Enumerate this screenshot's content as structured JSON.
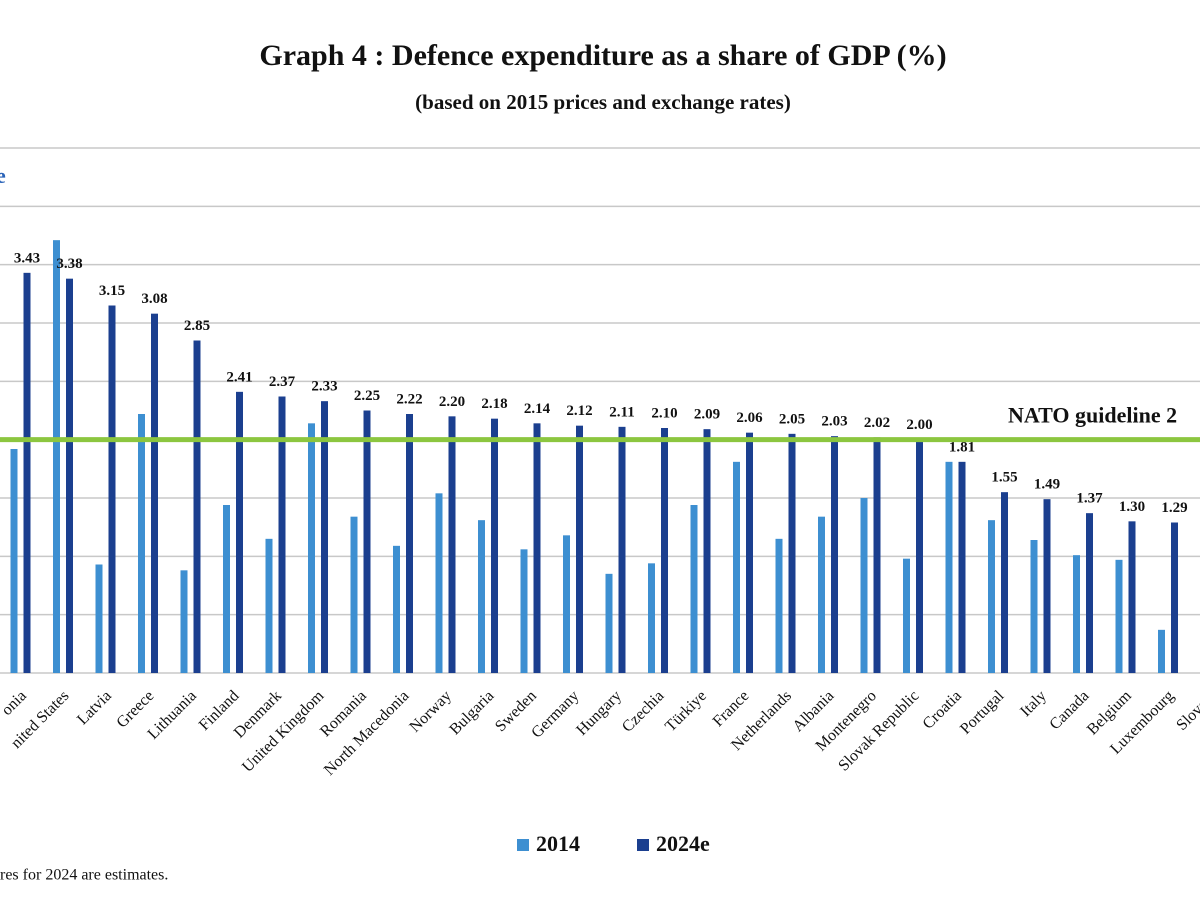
{
  "chart_data": {
    "type": "bar",
    "title": "Graph 4 : Defence expenditure as a share of GDP (%)",
    "subtitle": "(based on 2015 prices and exchange rates)",
    "corner_text": "e",
    "footnote": "res for 2024 are estimates.",
    "categories": [
      "onia",
      "nited States",
      "Latvia",
      "Greece",
      "Lithuania",
      "Finland",
      "Denmark",
      "United Kingdom",
      "Romania",
      "North Macedonia",
      "Norway",
      "Bulgaria",
      "Sweden",
      "Germany",
      "Hungary",
      "Czechia",
      "Türkiye",
      "France",
      "Netherlands",
      "Albania",
      "Montenegro",
      "Slovak Republic",
      "Croatia",
      "Portugal",
      "Italy",
      "Canada",
      "Belgium",
      "Luxembourg",
      "Sloveni"
    ],
    "series": [
      {
        "name": "2014",
        "color": "#3d8fd1",
        "values": [
          1.92,
          3.71,
          0.93,
          2.22,
          0.88,
          1.44,
          1.15,
          2.14,
          1.34,
          1.09,
          1.54,
          1.31,
          1.06,
          1.18,
          0.85,
          0.94,
          1.44,
          1.81,
          1.15,
          1.34,
          1.5,
          0.98,
          1.81,
          1.31,
          1.14,
          1.01,
          0.97,
          0.37,
          null
        ]
      },
      {
        "name": "2024e",
        "color": "#1b3f8f",
        "values": [
          3.43,
          3.38,
          3.15,
          3.08,
          2.85,
          2.41,
          2.37,
          2.33,
          2.25,
          2.22,
          2.2,
          2.18,
          2.14,
          2.12,
          2.11,
          2.1,
          2.09,
          2.06,
          2.05,
          2.03,
          2.02,
          2.0,
          1.81,
          1.55,
          1.49,
          1.37,
          1.3,
          1.29,
          null
        ],
        "value_labels": [
          "3.43",
          "3.38",
          "3.15",
          "3.08",
          "2.85",
          "2.41",
          "2.37",
          "2.33",
          "2.25",
          "2.22",
          "2.20",
          "2.18",
          "2.14",
          "2.12",
          "2.11",
          "2.10",
          "2.09",
          "2.06",
          "2.05",
          "2.03",
          "2.02",
          "2.00",
          "1.81",
          "1.55",
          "1.49",
          "1.37",
          "1.30",
          "1.29",
          null
        ]
      }
    ],
    "ylim": [
      0,
      4.5
    ],
    "yticks": [
      0,
      0.5,
      1,
      1.5,
      2,
      2.5,
      3,
      3.5,
      4,
      4.5
    ],
    "grid": true,
    "reference_line": {
      "value": 2,
      "label": "NATO guideline 2",
      "color": "#8cc63f"
    }
  }
}
